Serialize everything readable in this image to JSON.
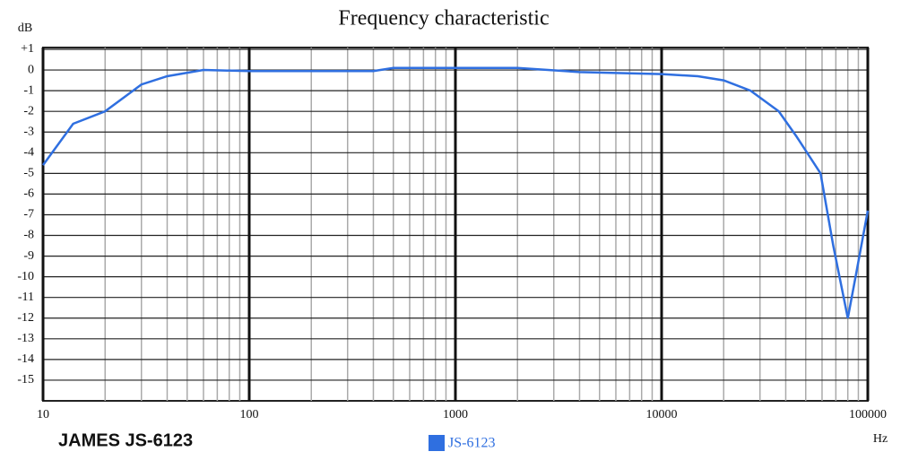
{
  "chart_data": {
    "type": "line",
    "title": "Frequency characteristic",
    "y_label": "dB",
    "x_label": "Hz",
    "annotation": "JAMES JS-6123",
    "log_x": true,
    "grid": true,
    "xlim": [
      10,
      100000
    ],
    "xticks": [
      10,
      100,
      1000,
      10000,
      100000
    ],
    "ylim": [
      -16,
      1
    ],
    "yticks": [
      {
        "value": 1,
        "label": "+1"
      },
      0,
      -1,
      -2,
      -3,
      -4,
      -5,
      -6,
      -7,
      -8,
      -9,
      -10,
      -11,
      -12,
      -13,
      -14,
      -15
    ],
    "series": [
      {
        "name": "JS-6123",
        "color": "#2f6fe0",
        "x": [
          10,
          14,
          20,
          30,
          40,
          60,
          100,
          400,
          500,
          1000,
          2000,
          4000,
          10000,
          15000,
          20000,
          27000,
          37000,
          45000,
          59000,
          68000,
          80000,
          88000,
          100000
        ],
        "values": [
          -4.6,
          -2.6,
          -2,
          -0.7,
          -0.3,
          0,
          -0.05,
          -0.05,
          0.1,
          0.1,
          0.1,
          -0.1,
          -0.2,
          -0.3,
          -0.5,
          -1,
          -2,
          -3.2,
          -5,
          -8.5,
          -12,
          -9.8,
          -6.8
        ]
      }
    ]
  }
}
